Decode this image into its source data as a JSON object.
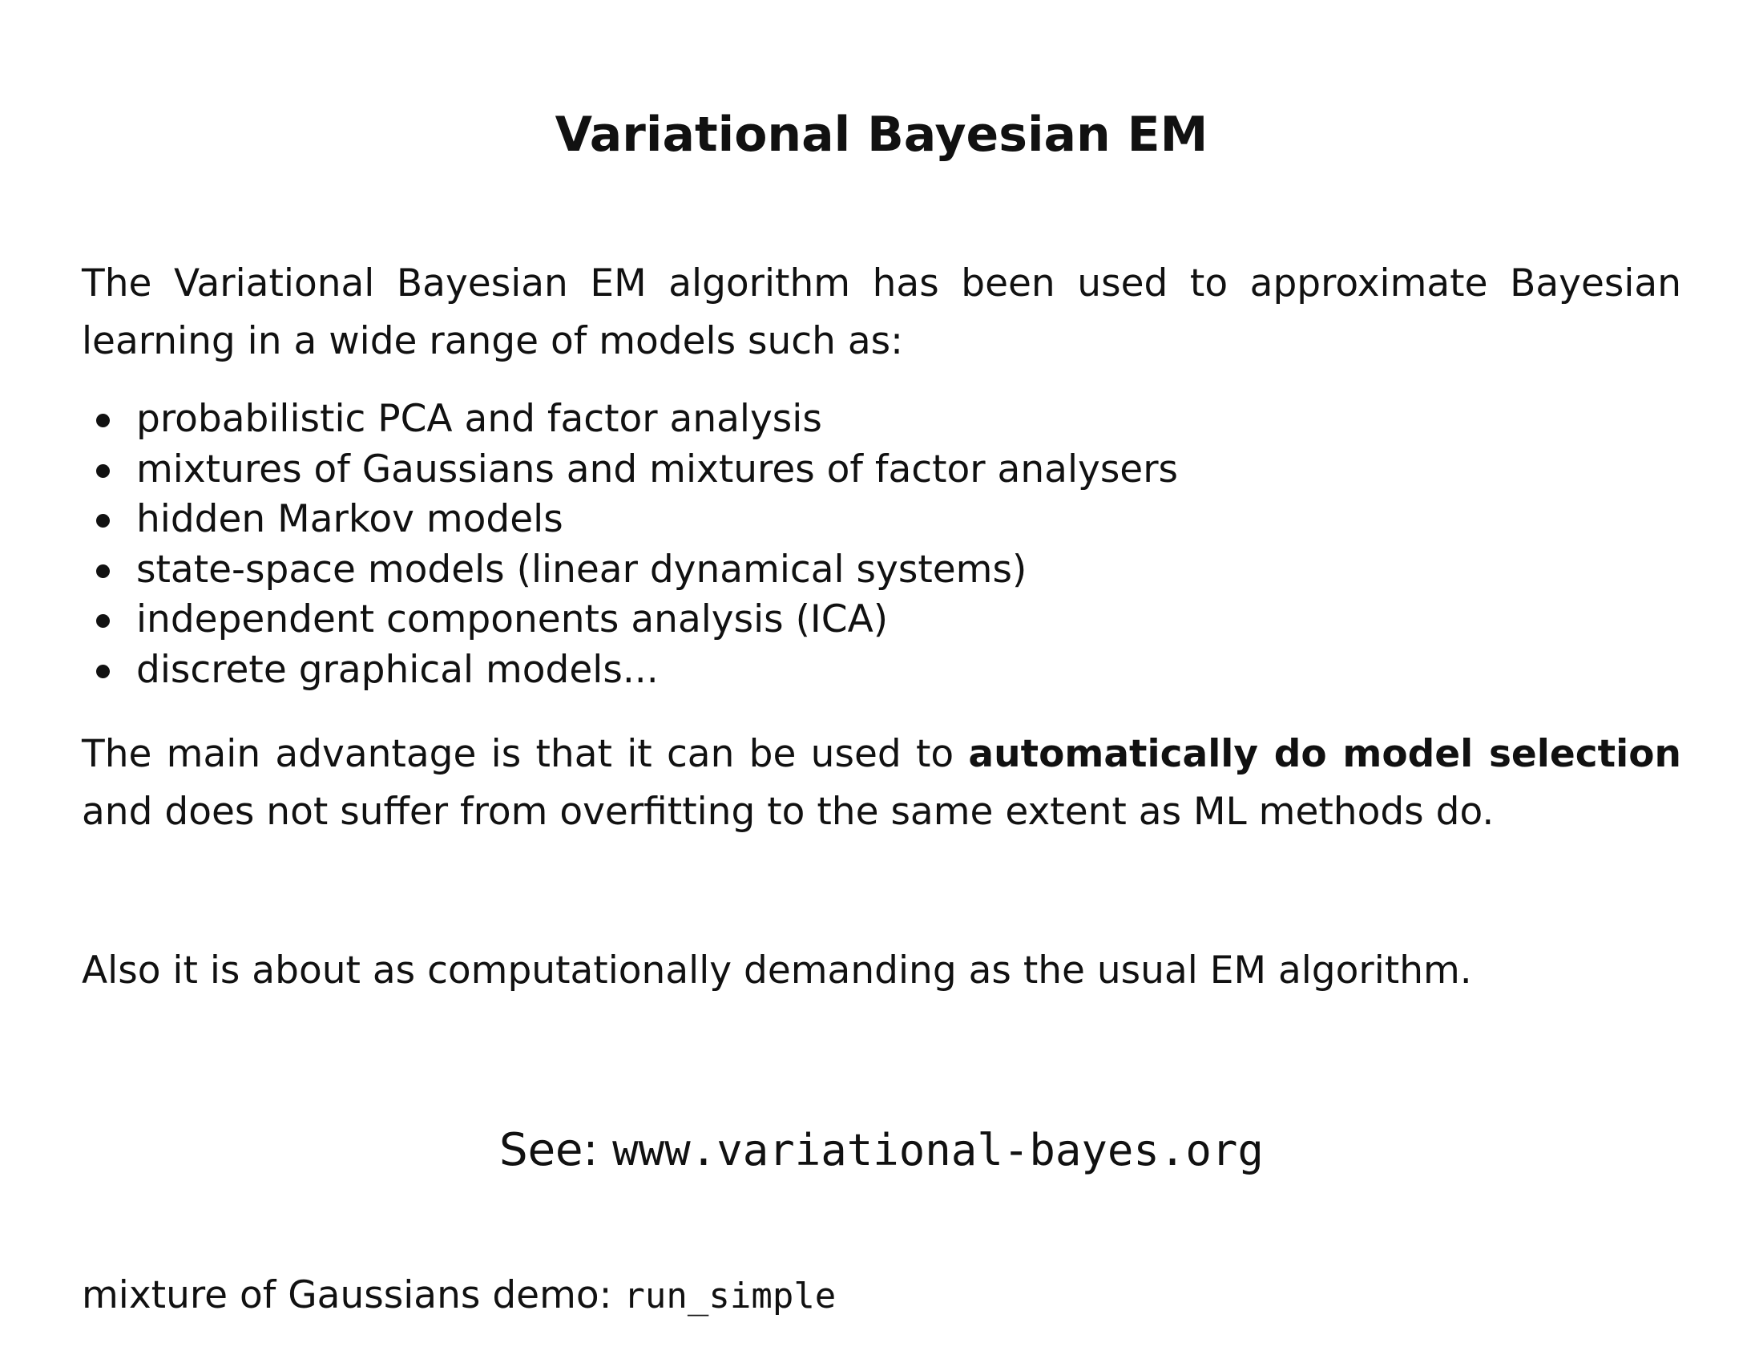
{
  "title": "Variational Bayesian EM",
  "intro": "The Variational Bayesian EM algorithm has been used to approximate Bayesian learning in a wide range of models such as:",
  "bullets": [
    "probabilistic PCA and factor analysis",
    "mixtures of Gaussians and mixtures of factor analysers",
    "hidden Markov models",
    "state-space models (linear dynamical systems)",
    "independent components analysis (ICA)",
    "discrete graphical models..."
  ],
  "advantage": {
    "before": "The main advantage is that it can be used to ",
    "bold": "automatically do model selection",
    "after": " and does not suffer from overfitting to the same extent as ML methods do."
  },
  "also": "Also it is about as computationally demanding as the usual EM algorithm.",
  "see": {
    "label": "See: ",
    "url": "www.variational-bayes.org"
  },
  "demo": {
    "label": "mixture of Gaussians demo: ",
    "command": "run_simple"
  }
}
